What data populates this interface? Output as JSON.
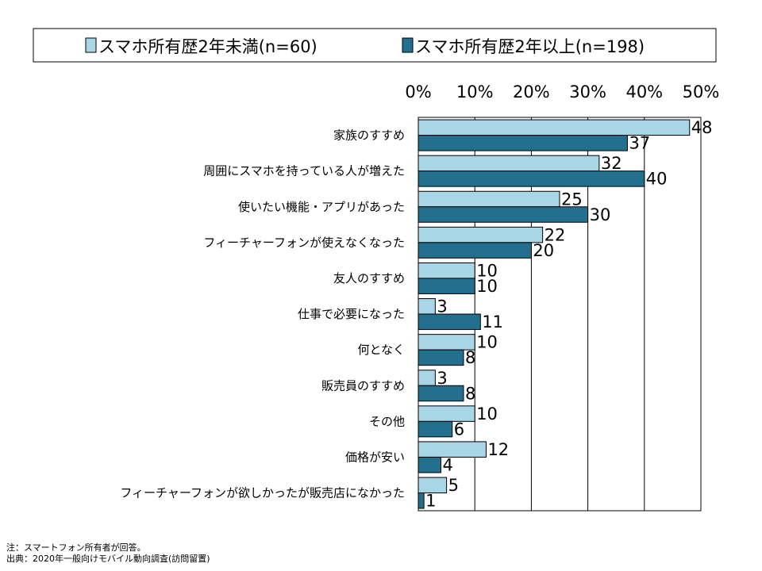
{
  "chart_data": {
    "type": "bar",
    "orientation": "horizontal",
    "categories": [
      "家族のすすめ",
      "周囲にスマホを持っている人が増えた",
      "使いたい機能・アプリがあった",
      "フィーチャーフォンが使えなくなった",
      "友人のすすめ",
      "仕事で必要になった",
      "何となく",
      "販売員のすすめ",
      "その他",
      "価格が安い",
      "フィーチャーフォンが欲しかったが販売店になかった"
    ],
    "series": [
      {
        "name": "スマホ所有歴2年未満(n=60)",
        "color": "#a8d6e6",
        "values": [
          48,
          32,
          25,
          22,
          10,
          3,
          10,
          3,
          10,
          12,
          5
        ]
      },
      {
        "name": "スマホ所有歴2年以上(n=198)",
        "color": "#22708e",
        "values": [
          37,
          40,
          30,
          20,
          10,
          11,
          8,
          8,
          6,
          4,
          1
        ]
      }
    ],
    "xlim": [
      0,
      50
    ],
    "ticks": [
      "0%",
      "10%",
      "20%",
      "30%",
      "40%",
      "50%"
    ],
    "grid": true,
    "legend_position": "top"
  },
  "notes": {
    "line1": "注：スマートフォン所有者が回答。",
    "line2": "出典：2020年一般向けモバイル動向調査(訪問留置)"
  }
}
